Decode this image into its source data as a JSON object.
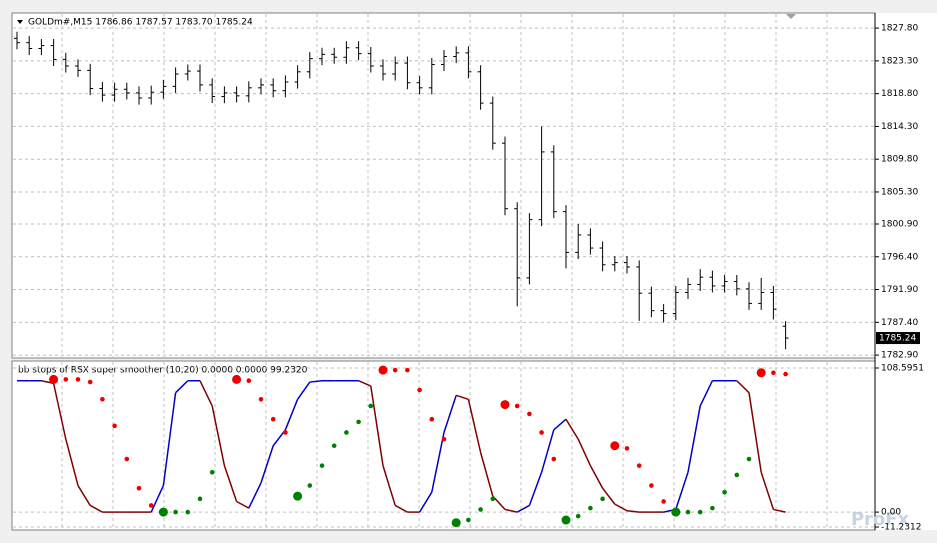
{
  "chart_data": [
    {
      "type": "ohlc",
      "title": "GOLDm#,M15  1786.86 1787.57 1783.70 1785.24",
      "color": "#000000",
      "open": [
        1826.4,
        1825.8,
        1825.0,
        1825.4,
        1823.5,
        1822.6,
        1822.0,
        1819.5,
        1818.6,
        1819.4,
        1818.9,
        1818.2,
        1819.0,
        1819.8,
        1821.5,
        1821.9,
        1820.0,
        1818.4,
        1818.9,
        1818.5,
        1819.6,
        1820.0,
        1819.2,
        1820.4,
        1821.8,
        1823.6,
        1824.2,
        1823.8,
        1825.1,
        1824.3,
        1822.6,
        1821.5,
        1823.0,
        1820.3,
        1819.6,
        1822.8,
        1823.9,
        1824.4,
        1821.8,
        1817.5,
        1812.0,
        1803.0,
        1793.5,
        1801.5,
        1810.8,
        1802.6,
        1797.0,
        1799.4,
        1797.6,
        1795.3,
        1795.6,
        1795.0,
        1791.4,
        1789.0,
        1788.6,
        1791.5,
        1792.6,
        1793.6,
        1792.4,
        1793.0,
        1792.0,
        1790.0,
        1791.5,
        1786.86
      ],
      "high": [
        1827.3,
        1826.7,
        1826.3,
        1826.3,
        1824.4,
        1823.5,
        1822.9,
        1820.4,
        1820.3,
        1820.3,
        1819.8,
        1819.9,
        1820.7,
        1822.4,
        1822.8,
        1822.8,
        1820.9,
        1819.8,
        1819.8,
        1820.5,
        1820.9,
        1820.9,
        1821.3,
        1822.7,
        1824.5,
        1825.1,
        1825.1,
        1826.0,
        1826.0,
        1825.2,
        1823.5,
        1823.9,
        1823.9,
        1821.2,
        1823.7,
        1824.8,
        1825.3,
        1825.3,
        1822.7,
        1818.4,
        1812.9,
        1803.9,
        1802.4,
        1814.3,
        1811.7,
        1803.5,
        1800.9,
        1800.3,
        1798.5,
        1796.5,
        1796.5,
        1795.9,
        1792.3,
        1789.9,
        1792.4,
        1793.5,
        1794.7,
        1794.5,
        1793.9,
        1793.9,
        1792.9,
        1793.5,
        1792.4,
        1787.57
      ],
      "low": [
        1824.9,
        1824.1,
        1824.1,
        1822.6,
        1821.7,
        1821.1,
        1818.6,
        1817.7,
        1817.7,
        1818.0,
        1817.3,
        1817.3,
        1818.1,
        1818.9,
        1820.6,
        1819.1,
        1817.5,
        1817.5,
        1817.6,
        1817.6,
        1818.7,
        1818.3,
        1818.3,
        1819.5,
        1820.9,
        1822.7,
        1822.9,
        1822.9,
        1823.4,
        1821.7,
        1820.6,
        1820.6,
        1819.4,
        1818.7,
        1818.7,
        1821.9,
        1823.0,
        1820.9,
        1816.6,
        1811.1,
        1802.1,
        1789.6,
        1792.6,
        1800.6,
        1801.7,
        1794.8,
        1796.1,
        1796.7,
        1794.4,
        1794.4,
        1794.1,
        1787.6,
        1788.1,
        1787.4,
        1787.7,
        1790.6,
        1791.7,
        1791.5,
        1791.5,
        1791.1,
        1789.1,
        1789.1,
        1787.8,
        1783.7
      ],
      "close": [
        1825.8,
        1825.0,
        1825.4,
        1823.5,
        1822.6,
        1822.0,
        1819.5,
        1818.6,
        1819.4,
        1818.9,
        1818.2,
        1819.0,
        1819.8,
        1821.5,
        1821.9,
        1820.0,
        1818.4,
        1818.9,
        1818.5,
        1819.6,
        1820.0,
        1819.2,
        1820.4,
        1821.8,
        1823.6,
        1824.2,
        1823.8,
        1825.1,
        1824.3,
        1822.6,
        1821.5,
        1823.0,
        1820.3,
        1819.6,
        1822.8,
        1823.9,
        1824.4,
        1821.8,
        1817.5,
        1812.0,
        1803.0,
        1793.5,
        1801.5,
        1810.8,
        1802.6,
        1797.0,
        1799.4,
        1797.6,
        1795.3,
        1795.6,
        1795.0,
        1791.4,
        1789.0,
        1788.6,
        1791.5,
        1792.6,
        1793.6,
        1792.4,
        1793.0,
        1792.0,
        1790.0,
        1791.5,
        1789.2,
        1785.24
      ],
      "ylim": [
        1782.5,
        1829.6
      ],
      "yticks": [
        {
          "value": 1827.8,
          "label": "1827.80"
        },
        {
          "value": 1823.3,
          "label": "1823.30"
        },
        {
          "value": 1818.8,
          "label": "1818.80"
        },
        {
          "value": 1814.3,
          "label": "1814.30"
        },
        {
          "value": 1809.8,
          "label": "1809.80"
        },
        {
          "value": 1805.3,
          "label": "1805.30"
        },
        {
          "value": 1800.9,
          "label": "1800.90"
        },
        {
          "value": 1796.4,
          "label": "1796.40"
        },
        {
          "value": 1791.9,
          "label": "1791.90"
        },
        {
          "value": 1787.4,
          "label": "1787.40"
        },
        {
          "value": 1782.9,
          "label": "1782.90"
        }
      ],
      "grid": true
    },
    {
      "type": "line",
      "title": "bb stops of RSX super smoother (10,20) 0.0000 0.0000 99.2320",
      "watermark": "ProFx",
      "series": [
        {
          "color": "#0000cc",
          "down_color": "#800000",
          "style": "line",
          "values": [
            99,
            99,
            99,
            97,
            55,
            20,
            5,
            0,
            0,
            0,
            0,
            0,
            20,
            90,
            99,
            99,
            80,
            35,
            8,
            3,
            22,
            50,
            62,
            85,
            98,
            99,
            99,
            99,
            99,
            95,
            35,
            5,
            0,
            0,
            15,
            60,
            88,
            85,
            45,
            12,
            2,
            0,
            5,
            30,
            62,
            70,
            55,
            35,
            18,
            6,
            1,
            0,
            0,
            0,
            2,
            30,
            80,
            99,
            99,
            99,
            90,
            30,
            2,
            0
          ]
        },
        {
          "color": "#ee0000",
          "style": "dots",
          "values": [
            null,
            null,
            null,
            100,
            100,
            100,
            98,
            85,
            65,
            40,
            18,
            5,
            null,
            null,
            null,
            null,
            null,
            null,
            100,
            99,
            85,
            70,
            60,
            null,
            null,
            null,
            null,
            null,
            null,
            null,
            107,
            107,
            107,
            92,
            70,
            55,
            null,
            null,
            null,
            null,
            81,
            80,
            74,
            60,
            40,
            null,
            null,
            null,
            null,
            50,
            48,
            35,
            20,
            8,
            null,
            null,
            null,
            null,
            null,
            null,
            null,
            105,
            105,
            104
          ]
        },
        {
          "color": "#008000",
          "style": "dots",
          "values": [
            null,
            null,
            null,
            null,
            null,
            null,
            null,
            null,
            null,
            null,
            null,
            null,
            0,
            0,
            0,
            10,
            30,
            null,
            null,
            null,
            null,
            null,
            null,
            12,
            20,
            35,
            50,
            60,
            68,
            80,
            null,
            null,
            null,
            null,
            null,
            null,
            -8,
            -6,
            2,
            10,
            null,
            null,
            null,
            null,
            null,
            -6,
            -3,
            3,
            10,
            null,
            null,
            null,
            null,
            null,
            0,
            0,
            0,
            3,
            15,
            28,
            40,
            null,
            null,
            null
          ]
        }
      ],
      "ylim": [
        -11.2312,
        108.5951
      ],
      "yticks": [
        108.5951,
        {
          "value": 0,
          "label": "0.00"
        },
        -11.2312
      ],
      "grid": true
    }
  ]
}
